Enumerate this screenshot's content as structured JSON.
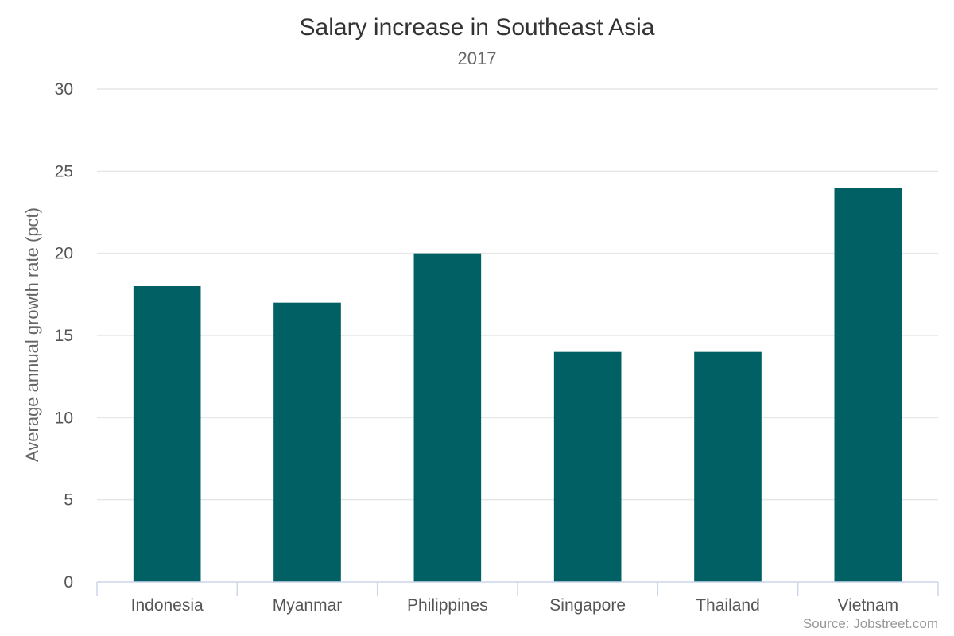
{
  "chart_data": {
    "type": "bar",
    "title": "Salary increase in Southeast Asia",
    "subtitle": "2017",
    "xlabel": "",
    "ylabel": "Average annual growth rate (pct)",
    "categories": [
      "Indonesia",
      "Myanmar",
      "Philippines",
      "Singapore",
      "Thailand",
      "Vietnam"
    ],
    "values": [
      18,
      17,
      20,
      14,
      14,
      24
    ],
    "ylim": [
      0,
      30
    ],
    "yticks": [
      0,
      5,
      10,
      15,
      20,
      25,
      30
    ],
    "grid": true,
    "legend": "none",
    "bar_color": "#006064",
    "credits": "Source: Jobstreet.com"
  }
}
